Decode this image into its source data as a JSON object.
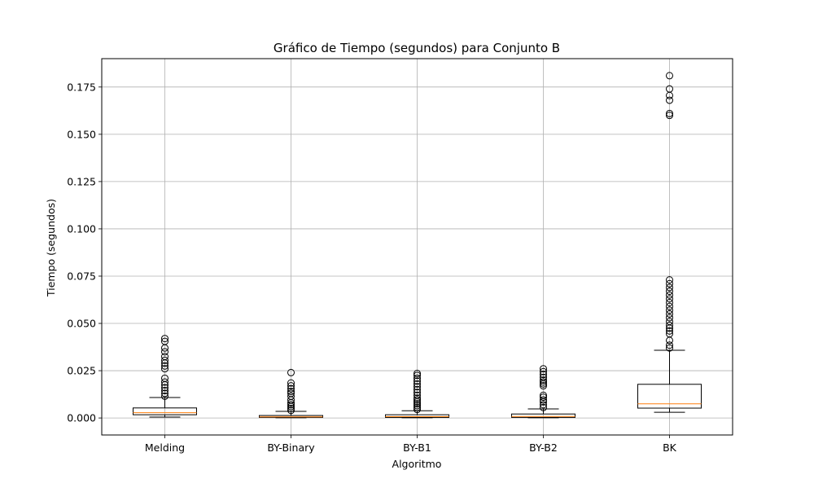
{
  "chart_data": {
    "type": "box",
    "title": "Gráfico de Tiempo (segundos) para Conjunto B",
    "xlabel": "Algoritmo",
    "ylabel": "Tiempo (segundos)",
    "ylim": [
      -0.009,
      0.19
    ],
    "yticks": [
      0.0,
      0.025,
      0.05,
      0.075,
      0.1,
      0.125,
      0.15,
      0.175
    ],
    "ytick_labels": [
      "0.000",
      "0.025",
      "0.050",
      "0.075",
      "0.100",
      "0.125",
      "0.150",
      "0.175"
    ],
    "grid": true,
    "categories": [
      "Melding",
      "BY-Binary",
      "BY-B1",
      "BY-B2",
      "BK"
    ],
    "series": [
      {
        "category": "Melding",
        "whisker_low": 0.0005,
        "q1": 0.0017,
        "median": 0.0028,
        "q3": 0.0053,
        "whisker_high": 0.0108,
        "outliers": [
          0.0115,
          0.013,
          0.0145,
          0.016,
          0.0175,
          0.019,
          0.021,
          0.026,
          0.0275,
          0.029,
          0.0305,
          0.0325,
          0.035,
          0.037,
          0.0405,
          0.042
        ]
      },
      {
        "category": "BY-Binary",
        "whisker_low": 0.0001,
        "q1": 0.0003,
        "median": 0.0006,
        "q3": 0.0013,
        "whisker_high": 0.0035,
        "outliers": [
          0.004,
          0.005,
          0.006,
          0.007,
          0.008,
          0.0095,
          0.0115,
          0.013,
          0.014,
          0.0155,
          0.017,
          0.0185,
          0.024
        ]
      },
      {
        "category": "BY-B1",
        "whisker_low": 0.0001,
        "q1": 0.0003,
        "median": 0.0007,
        "q3": 0.0017,
        "whisker_high": 0.0038,
        "outliers": [
          0.0045,
          0.0055,
          0.0065,
          0.0075,
          0.0085,
          0.0095,
          0.0105,
          0.012,
          0.0135,
          0.015,
          0.0165,
          0.018,
          0.0195,
          0.021,
          0.0225,
          0.0235
        ]
      },
      {
        "category": "BY-B2",
        "whisker_low": 0.0001,
        "q1": 0.0003,
        "median": 0.0008,
        "q3": 0.0021,
        "whisker_high": 0.0048,
        "outliers": [
          0.0055,
          0.007,
          0.0085,
          0.0095,
          0.011,
          0.012,
          0.017,
          0.018,
          0.019,
          0.02,
          0.0215,
          0.023,
          0.0245,
          0.026
        ]
      },
      {
        "category": "BK",
        "whisker_low": 0.003,
        "q1": 0.0052,
        "median": 0.0075,
        "q3": 0.0178,
        "whisker_high": 0.0358,
        "outliers": [
          0.037,
          0.0385,
          0.041,
          0.0445,
          0.046,
          0.0475,
          0.049,
          0.051,
          0.053,
          0.055,
          0.057,
          0.059,
          0.061,
          0.063,
          0.065,
          0.067,
          0.069,
          0.071,
          0.073,
          0.16,
          0.161,
          0.168,
          0.1705,
          0.174,
          0.181
        ]
      }
    ],
    "colors": {
      "median": "#ff7f0e",
      "box": "#000000",
      "grid": "#b0b0b0"
    }
  }
}
